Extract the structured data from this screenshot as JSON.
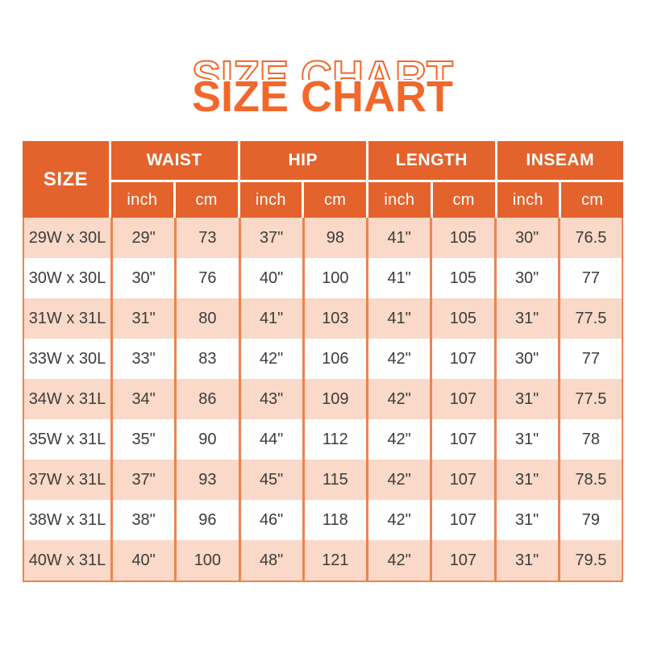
{
  "chart_data": {
    "type": "table",
    "title": "SIZE CHART",
    "title_echo": "SIZE CHART",
    "corner_header": "SIZE",
    "column_groups": [
      {
        "label": "WAIST",
        "sub": [
          "inch",
          "cm"
        ]
      },
      {
        "label": "HIP",
        "sub": [
          "inch",
          "cm"
        ]
      },
      {
        "label": "LENGTH",
        "sub": [
          "inch",
          "cm"
        ]
      },
      {
        "label": "INSEAM",
        "sub": [
          "inch",
          "cm"
        ]
      }
    ],
    "rows": [
      {
        "size": "29W x 30L",
        "values": [
          "29\"",
          "73",
          "37\"",
          "98",
          "41\"",
          "105",
          "30\"",
          "76.5"
        ]
      },
      {
        "size": "30W x 30L",
        "values": [
          "30\"",
          "76",
          "40\"",
          "100",
          "41\"",
          "105",
          "30\"",
          "77"
        ]
      },
      {
        "size": "31W x 31L",
        "values": [
          "31\"",
          "80",
          "41\"",
          "103",
          "41\"",
          "105",
          "31\"",
          "77.5"
        ]
      },
      {
        "size": "33W x 30L",
        "values": [
          "33\"",
          "83",
          "42\"",
          "106",
          "42\"",
          "107",
          "30\"",
          "77"
        ]
      },
      {
        "size": "34W x 31L",
        "values": [
          "34\"",
          "86",
          "43\"",
          "109",
          "42\"",
          "107",
          "31\"",
          "77.5"
        ]
      },
      {
        "size": "35W x 31L",
        "values": [
          "35\"",
          "90",
          "44\"",
          "112",
          "42\"",
          "107",
          "31\"",
          "78"
        ]
      },
      {
        "size": "37W x 31L",
        "values": [
          "37\"",
          "93",
          "45\"",
          "115",
          "42\"",
          "107",
          "31\"",
          "78.5"
        ]
      },
      {
        "size": "38W x 31L",
        "values": [
          "38\"",
          "96",
          "46\"",
          "118",
          "42\"",
          "107",
          "31\"",
          "79"
        ]
      },
      {
        "size": "40W x 31L",
        "values": [
          "40\"",
          "100",
          "48\"",
          "121",
          "42\"",
          "107",
          "31\"",
          "79.5"
        ]
      }
    ]
  },
  "colors": {
    "title_orange": "#F2682B",
    "header_orange": "#E4632C",
    "row_peach": "#FAD9C8",
    "row_white": "#FFFFFF",
    "grid_line": "#F0824E",
    "body_text": "#3C3C3C",
    "header_text": "#FFFFFF"
  }
}
